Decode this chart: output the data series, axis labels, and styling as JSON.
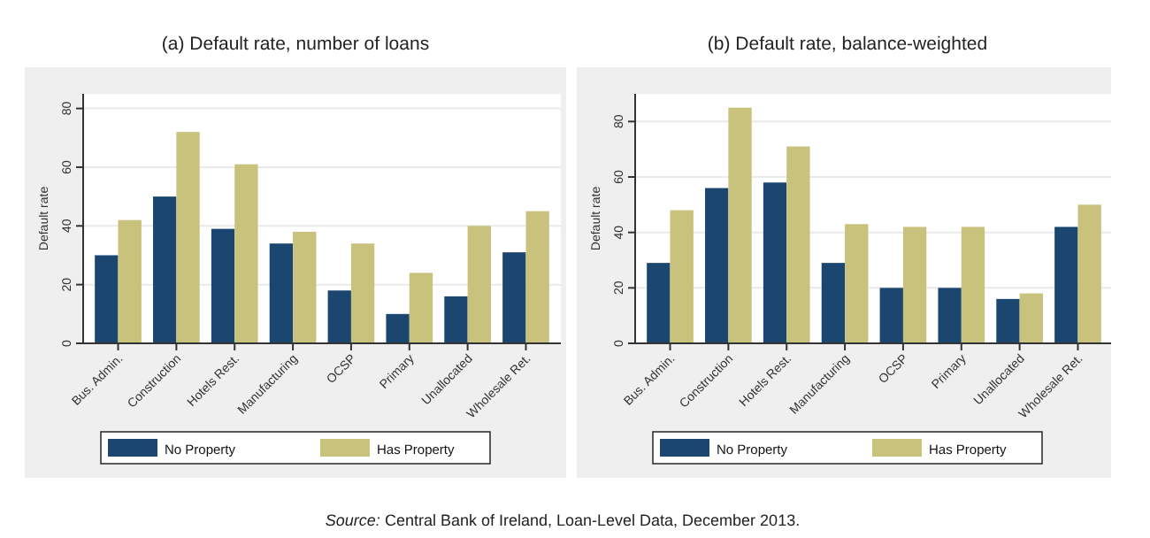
{
  "chart_data": [
    {
      "type": "bar",
      "title": "(a) Default rate, number of loans",
      "ylabel": "Default rate",
      "categories": [
        "Bus. Admin.",
        "Construction",
        "Hotels Rest.",
        "Manufacturing",
        "OCSP",
        "Primary",
        "Unallocated",
        "Wholesale Ret."
      ],
      "series": [
        {
          "name": "No Property",
          "color": "#1b4670",
          "values": [
            30,
            50,
            39,
            34,
            18,
            10,
            16,
            31
          ]
        },
        {
          "name": "Has Property",
          "color": "#c8c27d",
          "values": [
            42,
            72,
            61,
            38,
            34,
            24,
            40,
            45
          ]
        }
      ],
      "ylim": [
        0,
        85
      ],
      "yticks": [
        0,
        20,
        40,
        60,
        80
      ],
      "grid": "y",
      "legend": "bottom"
    },
    {
      "type": "bar",
      "title": "(b) Default rate, balance-weighted",
      "ylabel": "Default rate",
      "categories": [
        "Bus. Admin.",
        "Construction",
        "Hotels Rest.",
        "Manufacturing",
        "OCSP",
        "Primary",
        "Unallocated",
        "Wholesale Ret."
      ],
      "series": [
        {
          "name": "No Property",
          "color": "#1b4670",
          "values": [
            29,
            56,
            58,
            29,
            20,
            20,
            16,
            42
          ]
        },
        {
          "name": "Has Property",
          "color": "#c8c27d",
          "values": [
            48,
            85,
            71,
            43,
            42,
            42,
            18,
            50
          ]
        }
      ],
      "ylim": [
        0,
        90
      ],
      "yticks": [
        0,
        20,
        40,
        60,
        80
      ],
      "grid": "y",
      "legend": "bottom",
      "annotations": [
        "Source: Central Bank of Ireland, Loan-Level Data, December 2013."
      ]
    }
  ]
}
